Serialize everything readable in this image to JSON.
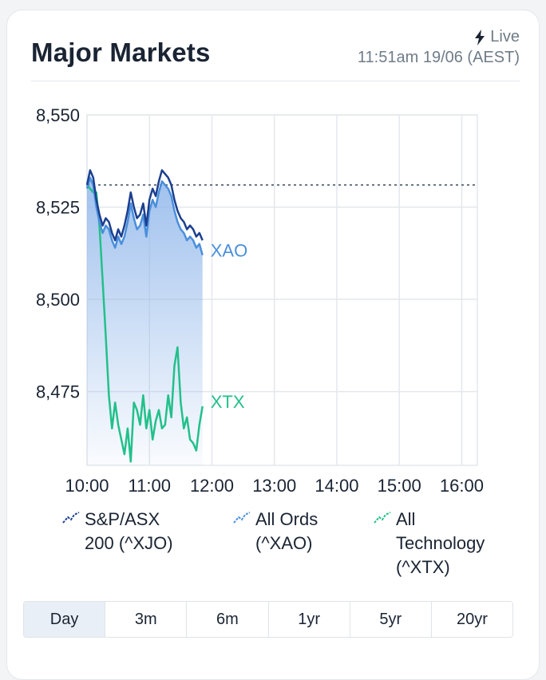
{
  "header": {
    "title": "Major Markets",
    "live_label": "Live",
    "timestamp": "11:51am 19/06 (AEST)"
  },
  "chart_data": {
    "type": "line",
    "title": "",
    "xlabel": "",
    "ylabel": "",
    "x_ticks": [
      "10:00",
      "11:00",
      "12:00",
      "13:00",
      "14:00",
      "15:00",
      "16:00"
    ],
    "y_ticks": [
      "8,550",
      "8,525",
      "8,500",
      "8,475"
    ],
    "ylim": [
      8455,
      8550
    ],
    "xlim": [
      "10:00",
      "16:15"
    ],
    "grid": true,
    "reference_line": 8531,
    "series": [
      {
        "name": "S&P/ASX 200 (^XJO)",
        "color": "#1c3f8f",
        "points": [
          [
            "10:00",
            8531
          ],
          [
            "10:03",
            8535
          ],
          [
            "10:06",
            8533
          ],
          [
            "10:09",
            8527
          ],
          [
            "10:12",
            8523
          ],
          [
            "10:15",
            8520
          ],
          [
            "10:18",
            8522
          ],
          [
            "10:21",
            8521
          ],
          [
            "10:24",
            8518
          ],
          [
            "10:27",
            8516
          ],
          [
            "10:30",
            8519
          ],
          [
            "10:33",
            8517
          ],
          [
            "10:36",
            8520
          ],
          [
            "10:39",
            8524
          ],
          [
            "10:42",
            8529
          ],
          [
            "10:45",
            8525
          ],
          [
            "10:48",
            8522
          ],
          [
            "10:51",
            8523
          ],
          [
            "10:54",
            8526
          ],
          [
            "10:57",
            8520
          ],
          [
            "11:00",
            8527
          ],
          [
            "11:03",
            8530
          ],
          [
            "11:06",
            8528
          ],
          [
            "11:09",
            8532
          ],
          [
            "11:12",
            8535
          ],
          [
            "11:15",
            8534
          ],
          [
            "11:18",
            8533
          ],
          [
            "11:21",
            8531
          ],
          [
            "11:24",
            8527
          ],
          [
            "11:27",
            8524
          ],
          [
            "11:30",
            8522
          ],
          [
            "11:33",
            8521
          ],
          [
            "11:36",
            8519
          ],
          [
            "11:39",
            8520
          ],
          [
            "11:42",
            8519
          ],
          [
            "11:45",
            8517
          ],
          [
            "11:48",
            8518
          ],
          [
            "11:51",
            8516
          ]
        ]
      },
      {
        "name": "All Ords (^XAO)",
        "color": "#4a8fdb",
        "fill_color": "#8fb6ea",
        "end_label": "XAO",
        "points": [
          [
            "10:00",
            8530
          ],
          [
            "10:03",
            8533
          ],
          [
            "10:06",
            8531
          ],
          [
            "10:09",
            8525
          ],
          [
            "10:12",
            8521
          ],
          [
            "10:15",
            8518
          ],
          [
            "10:18",
            8520
          ],
          [
            "10:21",
            8519
          ],
          [
            "10:24",
            8516
          ],
          [
            "10:27",
            8514
          ],
          [
            "10:30",
            8517
          ],
          [
            "10:33",
            8515
          ],
          [
            "10:36",
            8517
          ],
          [
            "10:39",
            8521
          ],
          [
            "10:42",
            8526
          ],
          [
            "10:45",
            8522
          ],
          [
            "10:48",
            8519
          ],
          [
            "10:51",
            8520
          ],
          [
            "10:54",
            8523
          ],
          [
            "10:57",
            8517
          ],
          [
            "11:00",
            8524
          ],
          [
            "11:03",
            8527
          ],
          [
            "11:06",
            8525
          ],
          [
            "11:09",
            8529
          ],
          [
            "11:12",
            8532
          ],
          [
            "11:15",
            8531
          ],
          [
            "11:18",
            8530
          ],
          [
            "11:21",
            8528
          ],
          [
            "11:24",
            8524
          ],
          [
            "11:27",
            8521
          ],
          [
            "11:30",
            8519
          ],
          [
            "11:33",
            8518
          ],
          [
            "11:36",
            8516
          ],
          [
            "11:39",
            8517
          ],
          [
            "11:42",
            8516
          ],
          [
            "11:45",
            8514
          ],
          [
            "11:48",
            8515
          ],
          [
            "11:51",
            8512
          ]
        ]
      },
      {
        "name": "All Technology (^XTX)",
        "color": "#22c08a",
        "end_label": "XTX",
        "points": [
          [
            "10:00",
            8531
          ],
          [
            "10:03",
            8530
          ],
          [
            "10:06",
            8529
          ],
          [
            "10:09",
            8529
          ],
          [
            "10:12",
            8520
          ],
          [
            "10:15",
            8505
          ],
          [
            "10:18",
            8490
          ],
          [
            "10:21",
            8474
          ],
          [
            "10:24",
            8465
          ],
          [
            "10:27",
            8472
          ],
          [
            "10:30",
            8466
          ],
          [
            "10:33",
            8462
          ],
          [
            "10:36",
            8458
          ],
          [
            "10:39",
            8465
          ],
          [
            "10:42",
            8456
          ],
          [
            "10:45",
            8472
          ],
          [
            "10:48",
            8470
          ],
          [
            "10:51",
            8466
          ],
          [
            "10:54",
            8474
          ],
          [
            "10:57",
            8465
          ],
          [
            "11:00",
            8470
          ],
          [
            "11:03",
            8462
          ],
          [
            "11:06",
            8467
          ],
          [
            "11:09",
            8470
          ],
          [
            "11:12",
            8465
          ],
          [
            "11:15",
            8466
          ],
          [
            "11:18",
            8474
          ],
          [
            "11:21",
            8468
          ],
          [
            "11:24",
            8482
          ],
          [
            "11:27",
            8487
          ],
          [
            "11:30",
            8472
          ],
          [
            "11:33",
            8465
          ],
          [
            "11:36",
            8468
          ],
          [
            "11:39",
            8462
          ],
          [
            "11:42",
            8461
          ],
          [
            "11:45",
            8459
          ],
          [
            "11:48",
            8466
          ],
          [
            "11:51",
            8471
          ]
        ]
      }
    ]
  },
  "legend": {
    "items": [
      {
        "line1": "S&P/ASX",
        "line2": "200 (^XJO)",
        "line3": "",
        "icon_color": "#1c3f8f"
      },
      {
        "line1": "All Ords",
        "line2": "(^XAO)",
        "line3": "",
        "icon_color": "#4a8fdb"
      },
      {
        "line1": "All",
        "line2": "Technology",
        "line3": "(^XTX)",
        "icon_color": "#22c08a"
      }
    ]
  },
  "tabs": [
    {
      "label": "Day",
      "active": true
    },
    {
      "label": "3m",
      "active": false
    },
    {
      "label": "6m",
      "active": false
    },
    {
      "label": "1yr",
      "active": false
    },
    {
      "label": "5yr",
      "active": false
    },
    {
      "label": "20yr",
      "active": false
    }
  ]
}
